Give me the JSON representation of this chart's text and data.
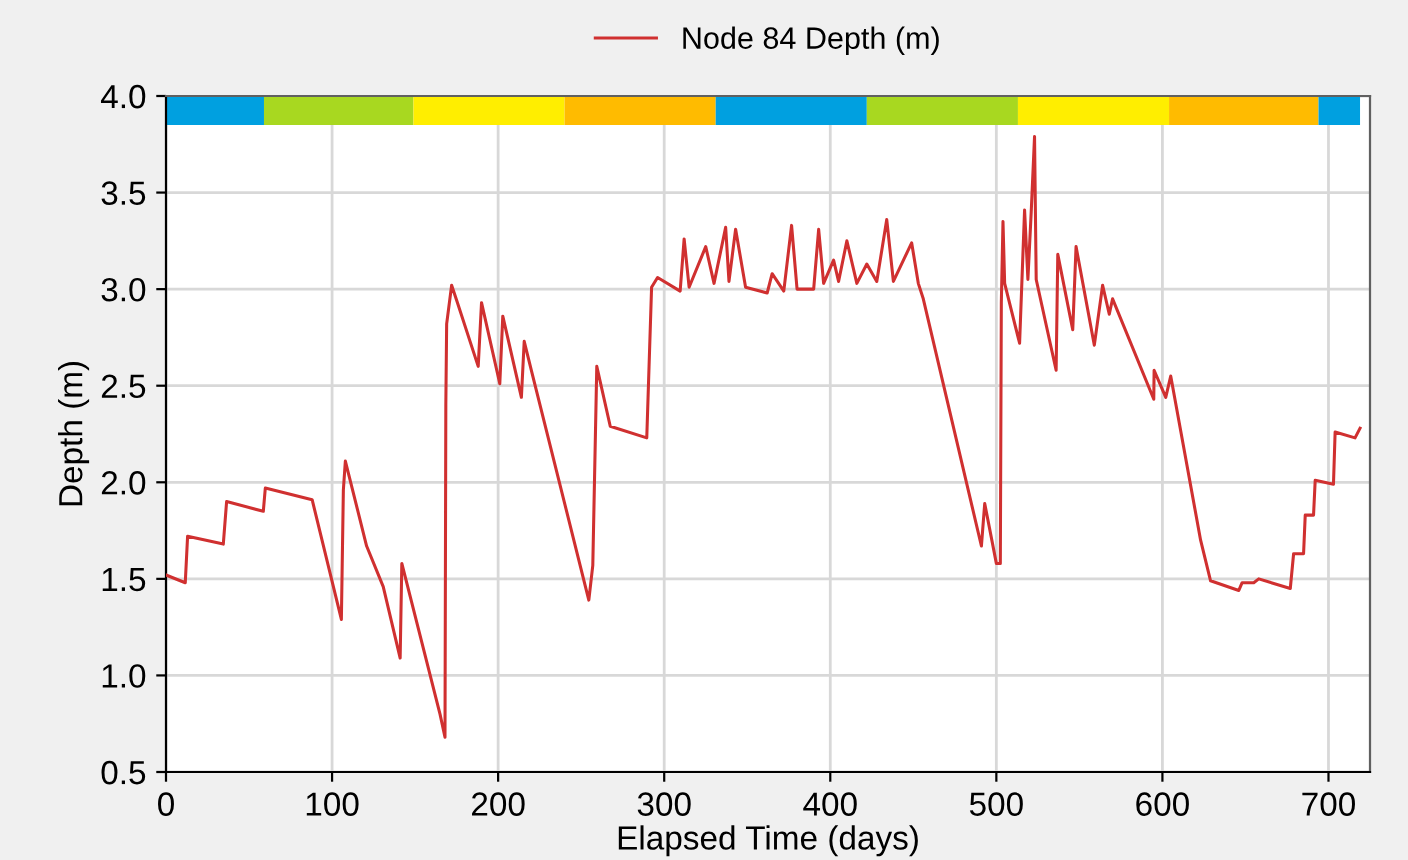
{
  "chart_data": {
    "type": "line",
    "xlabel": "Elapsed Time (days)",
    "ylabel": "Depth (m)",
    "xlim": [
      0,
      725
    ],
    "xticks": [
      0,
      100,
      200,
      300,
      400,
      500,
      600,
      700
    ],
    "ylim": [
      0.5,
      4.0
    ],
    "yticks": [
      0.5,
      {
        "value": 1,
        "label": "1.0"
      },
      1.5,
      {
        "value": 2,
        "label": "2.0"
      },
      2.5,
      {
        "value": 3,
        "label": "3.0"
      },
      3.5,
      {
        "value": 4,
        "label": "4.0"
      }
    ],
    "grid": true,
    "legend": "top",
    "marker": "none",
    "line_style": "solid",
    "bands": [
      {
        "axis": "x",
        "from": 0,
        "to": 59,
        "color": "#00a0e0"
      },
      {
        "axis": "x",
        "from": 59,
        "to": 149,
        "color": "#a8d820"
      },
      {
        "axis": "x",
        "from": 149,
        "to": 240,
        "color": "#ffee00"
      },
      {
        "axis": "x",
        "from": 240,
        "to": 331,
        "color": "#ffbb00"
      },
      {
        "axis": "x",
        "from": 331,
        "to": 422,
        "color": "#00a0e0"
      },
      {
        "axis": "x",
        "from": 422,
        "to": 513,
        "color": "#a8d820"
      },
      {
        "axis": "x",
        "from": 513,
        "to": 604,
        "color": "#ffee00"
      },
      {
        "axis": "x",
        "from": 604,
        "to": 694,
        "color": "#ffbb00"
      },
      {
        "axis": "x",
        "from": 694,
        "to": 719,
        "color": "#00a0e0"
      }
    ],
    "series": [
      {
        "name": "Node 84 Depth (m)",
        "color": "#d03030",
        "x": [
          0,
          11.6,
          13,
          34.5,
          36.5,
          58.6,
          59.8,
          88,
          105.6,
          106.8,
          108,
          120.8,
          130.8,
          141,
          142,
          165,
          168,
          168.5,
          169,
          172,
          175.5,
          188,
          190,
          201,
          202.8,
          214,
          215.7,
          220,
          254.6,
          257,
          259.4,
          267.5,
          289.5,
          292.4,
          296,
          309.6,
          312,
          315,
          325,
          330,
          337,
          339,
          343,
          349,
          362,
          365,
          372,
          376.7,
          380,
          390,
          393,
          396,
          402,
          405,
          410,
          416,
          422,
          428,
          434,
          438,
          449,
          453,
          456,
          491,
          493,
          500,
          502.4,
          503,
          504,
          505,
          514,
          517,
          519,
          521,
          523,
          524,
          536,
          537,
          546,
          548,
          559,
          564,
          568,
          570,
          594.8,
          595,
          602,
          605,
          623,
          629,
          646,
          648,
          655,
          658,
          677,
          679,
          685,
          686,
          691,
          692,
          703,
          704,
          716,
          719
        ],
        "values": [
          1.52,
          1.48,
          1.72,
          1.68,
          1.9,
          1.85,
          1.97,
          1.91,
          1.29,
          1.96,
          2.11,
          1.67,
          1.46,
          1.09,
          1.58,
          0.8,
          0.68,
          2.4,
          2.82,
          3.02,
          2.93,
          2.6,
          2.93,
          2.51,
          2.86,
          2.44,
          2.73,
          2.58,
          1.39,
          1.57,
          2.6,
          2.29,
          2.23,
          3.01,
          3.06,
          2.99,
          3.26,
          3.01,
          3.22,
          3.03,
          3.32,
          3.04,
          3.31,
          3.01,
          2.98,
          3.08,
          2.99,
          3.33,
          3.0,
          3.0,
          3.31,
          3.03,
          3.15,
          3.04,
          3.25,
          3.03,
          3.13,
          3.04,
          3.36,
          3.04,
          3.24,
          3.03,
          2.95,
          1.67,
          1.89,
          1.58,
          1.58,
          2.93,
          3.35,
          3.03,
          2.72,
          3.41,
          3.05,
          3.4,
          3.79,
          3.05,
          2.58,
          3.18,
          2.79,
          3.22,
          2.71,
          3.02,
          2.87,
          2.95,
          2.43,
          2.58,
          2.44,
          2.55,
          1.7,
          1.49,
          1.44,
          1.48,
          1.48,
          1.5,
          1.45,
          1.63,
          1.63,
          1.83,
          1.83,
          2.01,
          1.99,
          2.26,
          2.23,
          2.28
        ]
      }
    ]
  }
}
